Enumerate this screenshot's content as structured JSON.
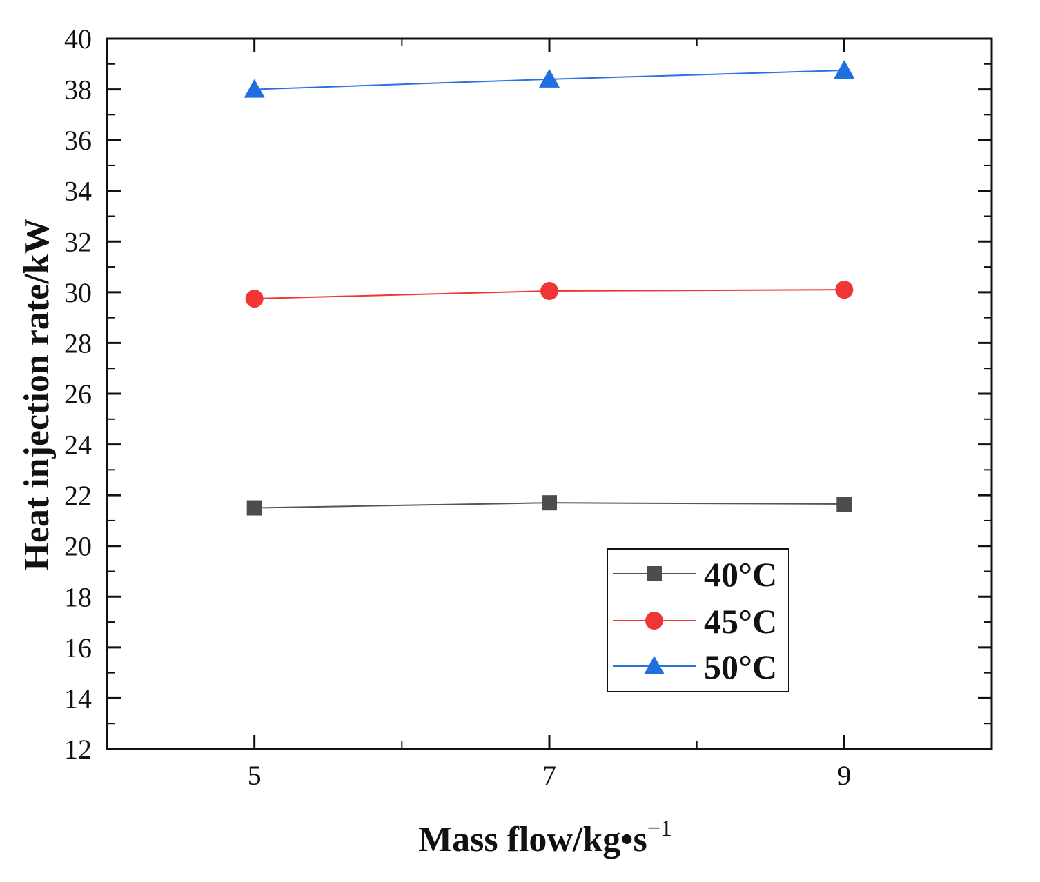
{
  "chart_data": {
    "type": "line",
    "title": "",
    "xlabel": "Mass flow/kg•s",
    "xlabel_superscript": "−1",
    "ylabel": "Heat injection rate/kW",
    "x": [
      5,
      7,
      9
    ],
    "xlim": [
      4,
      10
    ],
    "ylim": [
      12,
      40
    ],
    "xticks": [
      5,
      7,
      9
    ],
    "xtick_labels": [
      "5",
      "7",
      "9"
    ],
    "yticks": [
      12,
      14,
      16,
      18,
      20,
      22,
      24,
      26,
      28,
      30,
      32,
      34,
      36,
      38,
      40
    ],
    "ytick_labels": [
      "12",
      "14",
      "16",
      "18",
      "20",
      "22",
      "24",
      "26",
      "28",
      "30",
      "32",
      "34",
      "36",
      "38",
      "40"
    ],
    "grid": false,
    "legend_position": "bottom-right",
    "series": [
      {
        "name": "40°C",
        "marker": "square",
        "color": "#4d4d4d",
        "line_color": "#555555",
        "values": [
          21.5,
          21.7,
          21.65
        ]
      },
      {
        "name": "45°C",
        "marker": "circle",
        "color": "#f03535",
        "line_color": "#f03535",
        "values": [
          29.75,
          30.05,
          30.1
        ]
      },
      {
        "name": "50°C",
        "marker": "triangle",
        "color": "#1f6fe0",
        "line_color": "#2a72e0",
        "values": [
          38.0,
          38.4,
          38.75
        ]
      }
    ]
  }
}
